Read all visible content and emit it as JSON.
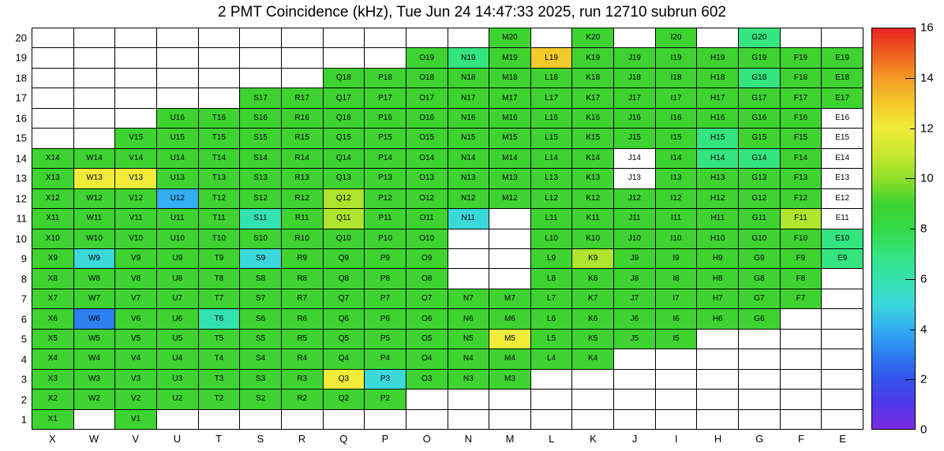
{
  "title": "2 PMT Coincidence (kHz), Tue Jun 24 14:47:33 2025, run 12710 subrun 602",
  "chart_data": {
    "type": "heatmap",
    "title": "2 PMT Coincidence (kHz), Tue Jun 24 14:47:33 2025, run 12710 subrun 602",
    "unit": "kHz",
    "x_categories": [
      "X",
      "W",
      "V",
      "U",
      "T",
      "S",
      "R",
      "Q",
      "P",
      "O",
      "N",
      "M",
      "L",
      "K",
      "J",
      "I",
      "H",
      "G",
      "F",
      "E"
    ],
    "y_categories": [
      1,
      2,
      3,
      4,
      5,
      6,
      7,
      8,
      9,
      10,
      11,
      12,
      13,
      14,
      15,
      16,
      17,
      18,
      19,
      20
    ],
    "zlim": [
      0,
      16
    ],
    "legend_position": "right",
    "value_codes": {
      "null": "empty bin (white, no label)",
      "-1": "labeled channel with no data (white)"
    },
    "rows": [
      {
        "row": 20,
        "values": [
          null,
          null,
          null,
          null,
          null,
          null,
          null,
          null,
          null,
          null,
          null,
          9,
          null,
          9,
          null,
          9,
          null,
          7,
          null,
          null
        ]
      },
      {
        "row": 19,
        "values": [
          null,
          null,
          null,
          null,
          null,
          null,
          null,
          null,
          null,
          9,
          7,
          9,
          13,
          9,
          9,
          9,
          9,
          9,
          9,
          9
        ]
      },
      {
        "row": 18,
        "values": [
          null,
          null,
          null,
          null,
          null,
          null,
          null,
          9,
          9,
          9,
          9,
          9,
          9,
          9,
          9,
          9,
          9,
          7,
          9,
          9
        ]
      },
      {
        "row": 17,
        "values": [
          null,
          null,
          null,
          null,
          null,
          9,
          9,
          9,
          9,
          9,
          9,
          9,
          9,
          9,
          9,
          9,
          9,
          9,
          9,
          9
        ]
      },
      {
        "row": 16,
        "values": [
          null,
          null,
          null,
          9,
          9,
          9,
          9,
          9,
          9,
          9,
          9,
          9,
          9,
          9,
          9,
          9,
          9,
          9,
          9,
          -1
        ]
      },
      {
        "row": 15,
        "values": [
          null,
          null,
          9,
          9,
          9,
          9,
          9,
          9,
          9,
          9,
          9,
          9,
          9,
          9,
          9,
          9,
          7,
          9,
          9,
          -1
        ]
      },
      {
        "row": 14,
        "values": [
          9,
          9,
          9,
          9,
          9,
          9,
          9,
          9,
          9,
          9,
          9,
          9,
          9,
          9,
          -1,
          9,
          7,
          7,
          9,
          -1
        ]
      },
      {
        "row": 13,
        "values": [
          9,
          12,
          12,
          9,
          9,
          9,
          9,
          9,
          9,
          9,
          9,
          9,
          9,
          9,
          -1,
          9,
          9,
          9,
          9,
          -1
        ]
      },
      {
        "row": 12,
        "values": [
          9,
          9,
          9,
          4,
          9,
          9,
          9,
          10.5,
          9,
          9,
          9,
          9,
          9,
          9,
          9,
          9,
          9,
          9,
          9,
          -1
        ]
      },
      {
        "row": 11,
        "values": [
          9,
          9,
          9,
          9,
          9,
          6,
          9,
          10.5,
          9,
          9,
          5,
          null,
          9,
          9,
          9,
          9,
          9,
          9,
          10.5,
          -1
        ]
      },
      {
        "row": 10,
        "values": [
          9,
          9,
          9,
          9,
          9,
          9,
          9,
          9,
          9,
          9,
          null,
          null,
          9,
          9,
          9,
          9,
          9,
          9,
          9,
          7
        ]
      },
      {
        "row": 9,
        "values": [
          9,
          5,
          9,
          9,
          9,
          5,
          9,
          9,
          9,
          9,
          null,
          null,
          9,
          10.5,
          9,
          9,
          9,
          9,
          9,
          7
        ]
      },
      {
        "row": 8,
        "values": [
          9,
          9,
          9,
          9,
          9,
          9,
          9,
          9,
          9,
          9,
          null,
          null,
          9,
          9,
          9,
          9,
          9,
          9,
          9,
          null
        ]
      },
      {
        "row": 7,
        "values": [
          9,
          9,
          9,
          9,
          9,
          9,
          9,
          9,
          9,
          9,
          9,
          9,
          9,
          9,
          9,
          9,
          9,
          9,
          9,
          null
        ]
      },
      {
        "row": 6,
        "values": [
          9,
          3,
          9,
          9,
          6,
          9,
          9,
          9,
          9,
          9,
          9,
          9,
          9,
          9,
          9,
          9,
          9,
          9,
          null,
          null
        ]
      },
      {
        "row": 5,
        "values": [
          9,
          9,
          9,
          9,
          9,
          9,
          9,
          9,
          9,
          9,
          9,
          12,
          9,
          9,
          9,
          9,
          null,
          null,
          null,
          null
        ]
      },
      {
        "row": 4,
        "values": [
          9,
          9,
          9,
          9,
          9,
          9,
          9,
          9,
          9,
          9,
          9,
          9,
          9,
          9,
          null,
          null,
          null,
          null,
          null,
          null
        ]
      },
      {
        "row": 3,
        "values": [
          9,
          9,
          9,
          9,
          9,
          9,
          9,
          12,
          5,
          9,
          9,
          9,
          null,
          null,
          null,
          null,
          null,
          null,
          null,
          null
        ]
      },
      {
        "row": 2,
        "values": [
          9,
          9,
          9,
          9,
          9,
          9,
          9,
          9,
          9,
          null,
          null,
          null,
          null,
          null,
          null,
          null,
          null,
          null,
          null,
          null
        ]
      },
      {
        "row": 1,
        "values": [
          9,
          null,
          9,
          null,
          null,
          null,
          null,
          null,
          null,
          null,
          null,
          null,
          null,
          null,
          null,
          null,
          null,
          null,
          null,
          null
        ]
      }
    ],
    "colorbar_ticks": [
      0,
      2,
      4,
      6,
      8,
      10,
      12,
      14,
      16
    ],
    "palette_stops": [
      {
        "v": 0,
        "color": "#7c2be0"
      },
      {
        "v": 1,
        "color": "#5138e8"
      },
      {
        "v": 2,
        "color": "#3353ec"
      },
      {
        "v": 3,
        "color": "#2e7ff0"
      },
      {
        "v": 4,
        "color": "#33aef2"
      },
      {
        "v": 5,
        "color": "#3bd8da"
      },
      {
        "v": 6,
        "color": "#34e2ae"
      },
      {
        "v": 7,
        "color": "#34e47e"
      },
      {
        "v": 8,
        "color": "#33da45"
      },
      {
        "v": 9,
        "color": "#3ed331"
      },
      {
        "v": 10,
        "color": "#90e02a"
      },
      {
        "v": 11,
        "color": "#cbe72f"
      },
      {
        "v": 12,
        "color": "#f0ec39"
      },
      {
        "v": 13,
        "color": "#f4ca2b"
      },
      {
        "v": 14,
        "color": "#f59b26"
      },
      {
        "v": 15,
        "color": "#f05e21"
      },
      {
        "v": 16,
        "color": "#e82420"
      }
    ]
  }
}
